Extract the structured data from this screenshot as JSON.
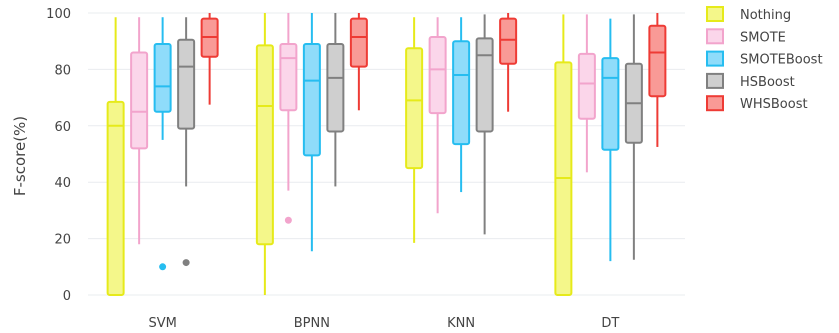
{
  "chart_data": {
    "type": "box",
    "title": "",
    "xlabel": "",
    "ylabel": "F-score(%)",
    "ylim": [
      0,
      100
    ],
    "yticks": [
      0,
      20,
      40,
      60,
      80,
      100
    ],
    "grid": true,
    "legend_placement": "top-right",
    "categories": [
      "SVM",
      "BPNN",
      "KNN",
      "DT"
    ],
    "series": [
      {
        "name": "Nothing",
        "fill": "#f4f78a",
        "stroke": "#e6ea1a",
        "boxes": [
          {
            "min": 0,
            "q1": 0,
            "median": 60,
            "q3": 68.5,
            "max": 98.5,
            "outliers": []
          },
          {
            "min": 0,
            "q1": 18,
            "median": 67,
            "q3": 88.5,
            "max": 100,
            "outliers": []
          },
          {
            "min": 18.5,
            "q1": 45,
            "median": 69,
            "q3": 87.5,
            "max": 98.5,
            "outliers": []
          },
          {
            "min": 0,
            "q1": 0,
            "median": 41.5,
            "q3": 82.5,
            "max": 99.5,
            "outliers": []
          }
        ]
      },
      {
        "name": "SMOTE",
        "fill": "#fbd6ea",
        "stroke": "#f2a4cc",
        "boxes": [
          {
            "min": 18,
            "q1": 52,
            "median": 65,
            "q3": 86,
            "max": 98.5,
            "outliers": []
          },
          {
            "min": 37,
            "q1": 65.5,
            "median": 84,
            "q3": 89,
            "max": 100,
            "outliers": [
              26.5
            ]
          },
          {
            "min": 29,
            "q1": 64.5,
            "median": 80,
            "q3": 91.5,
            "max": 98.5,
            "outliers": []
          },
          {
            "min": 43.5,
            "q1": 62.5,
            "median": 75,
            "q3": 85.5,
            "max": 99.5,
            "outliers": []
          }
        ]
      },
      {
        "name": "SMOTEBoost",
        "fill": "#8fdcfa",
        "stroke": "#26bdf0",
        "boxes": [
          {
            "min": 55,
            "q1": 65,
            "median": 74,
            "q3": 89,
            "max": 98.5,
            "outliers": [
              10
            ]
          },
          {
            "min": 15.5,
            "q1": 49.5,
            "median": 76,
            "q3": 89,
            "max": 100,
            "outliers": []
          },
          {
            "min": 36.5,
            "q1": 53.5,
            "median": 78,
            "q3": 90,
            "max": 98.5,
            "outliers": []
          },
          {
            "min": 12,
            "q1": 51.5,
            "median": 77,
            "q3": 84,
            "max": 98,
            "outliers": []
          }
        ]
      },
      {
        "name": "HSBoost",
        "fill": "#cfcfcf",
        "stroke": "#808080",
        "boxes": [
          {
            "min": 38.5,
            "q1": 59,
            "median": 81,
            "q3": 90.5,
            "max": 98.5,
            "outliers": [
              11.5
            ]
          },
          {
            "min": 38.5,
            "q1": 58,
            "median": 77,
            "q3": 89,
            "max": 100,
            "outliers": []
          },
          {
            "min": 21.5,
            "q1": 58,
            "median": 85,
            "q3": 91,
            "max": 99.5,
            "outliers": []
          },
          {
            "min": 12.5,
            "q1": 54,
            "median": 68,
            "q3": 82,
            "max": 99.5,
            "outliers": []
          }
        ]
      },
      {
        "name": "WHSBoost",
        "fill": "#f99a96",
        "stroke": "#ee3b35",
        "boxes": [
          {
            "min": 67.5,
            "q1": 84.5,
            "median": 91.5,
            "q3": 98,
            "max": 100,
            "outliers": []
          },
          {
            "min": 65.5,
            "q1": 81,
            "median": 91.5,
            "q3": 98,
            "max": 100,
            "outliers": []
          },
          {
            "min": 65,
            "q1": 82,
            "median": 90.5,
            "q3": 98,
            "max": 100,
            "outliers": []
          },
          {
            "min": 52.5,
            "q1": 70.5,
            "median": 86,
            "q3": 95.5,
            "max": 100,
            "outliers": []
          }
        ]
      }
    ]
  }
}
